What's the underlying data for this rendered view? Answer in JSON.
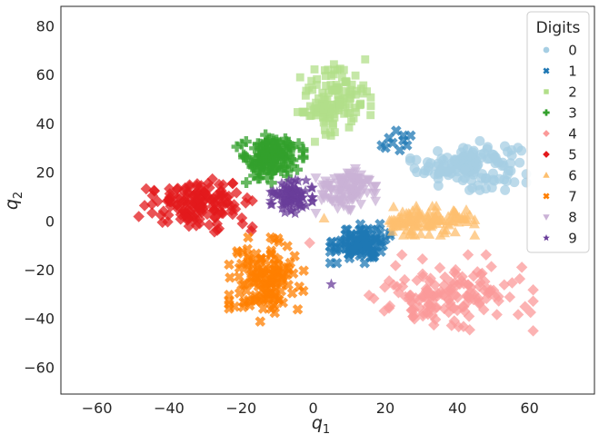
{
  "chart_data": {
    "type": "scatter",
    "xlabel": "q",
    "xlabel_sub": "1",
    "ylabel": "q",
    "ylabel_sub": "2",
    "xlim": [
      -70,
      78
    ],
    "ylim": [
      -71,
      88
    ],
    "xticks": [
      -60,
      -40,
      -20,
      0,
      20,
      40,
      60
    ],
    "yticks": [
      -60,
      -40,
      -20,
      0,
      20,
      40,
      60,
      80
    ],
    "xtick_labels": [
      "−60",
      "−40",
      "−20",
      "0",
      "20",
      "40",
      "60"
    ],
    "ytick_labels": [
      "−60",
      "−40",
      "−20",
      "0",
      "20",
      "40",
      "60",
      "80"
    ],
    "grid": false,
    "legend": {
      "title": "Digits",
      "placement": "top-right"
    },
    "series": [
      {
        "name": "0",
        "marker": "circle",
        "color": "#a6cee3",
        "center": [
          43,
          23
        ],
        "spread": [
          7,
          4.5
        ],
        "count": 140
      },
      {
        "name": "1",
        "marker": "x",
        "color": "#1f78b4",
        "center": [
          13,
          -9
        ],
        "spread": [
          3.6,
          3.6
        ],
        "count": 110,
        "extra": [
          [
            22,
            32
          ],
          [
            25,
            35
          ],
          [
            20,
            30
          ],
          [
            26,
            31
          ],
          [
            23,
            37
          ],
          [
            21,
            34
          ],
          [
            27,
            35
          ],
          [
            24,
            29
          ],
          [
            19,
            31
          ],
          [
            25,
            33
          ]
        ]
      },
      {
        "name": "2",
        "marker": "square",
        "color": "#b2df8a",
        "center": [
          6,
          49
        ],
        "spread": [
          4.5,
          7.5
        ],
        "count": 140
      },
      {
        "name": "3",
        "marker": "plus",
        "color": "#33a02c",
        "center": [
          -12,
          26
        ],
        "spread": [
          4,
          4.5
        ],
        "count": 130
      },
      {
        "name": "4",
        "marker": "diamond",
        "color": "#fb9a99",
        "center": [
          38,
          -30
        ],
        "spread": [
          10,
          7
        ],
        "count": 150
      },
      {
        "name": "5",
        "marker": "diamond",
        "color": "#e31a1c",
        "center": [
          -33,
          7
        ],
        "spread": [
          7,
          5
        ],
        "count": 150
      },
      {
        "name": "6",
        "marker": "triangle",
        "color": "#fdbf6f",
        "center": [
          31,
          0
        ],
        "spread": [
          6,
          2.6
        ],
        "count": 120
      },
      {
        "name": "7",
        "marker": "x",
        "color": "#ff7f00",
        "center": [
          -13,
          -24
        ],
        "spread": [
          4.5,
          7.5
        ],
        "count": 140
      },
      {
        "name": "8",
        "marker": "triangle-down",
        "color": "#cab2d6",
        "center": [
          9,
          13
        ],
        "spread": [
          3.6,
          4.8
        ],
        "count": 120
      },
      {
        "name": "9",
        "marker": "star",
        "color": "#6a3d9a",
        "center": [
          -6,
          10
        ],
        "spread": [
          2.5,
          3
        ],
        "count": 90,
        "extra": [
          [
            5,
            -26
          ]
        ]
      }
    ],
    "outliers": [
      {
        "series": "4",
        "x": -1,
        "y": -9
      },
      {
        "series": "6",
        "x": 3,
        "y": 1
      }
    ]
  }
}
